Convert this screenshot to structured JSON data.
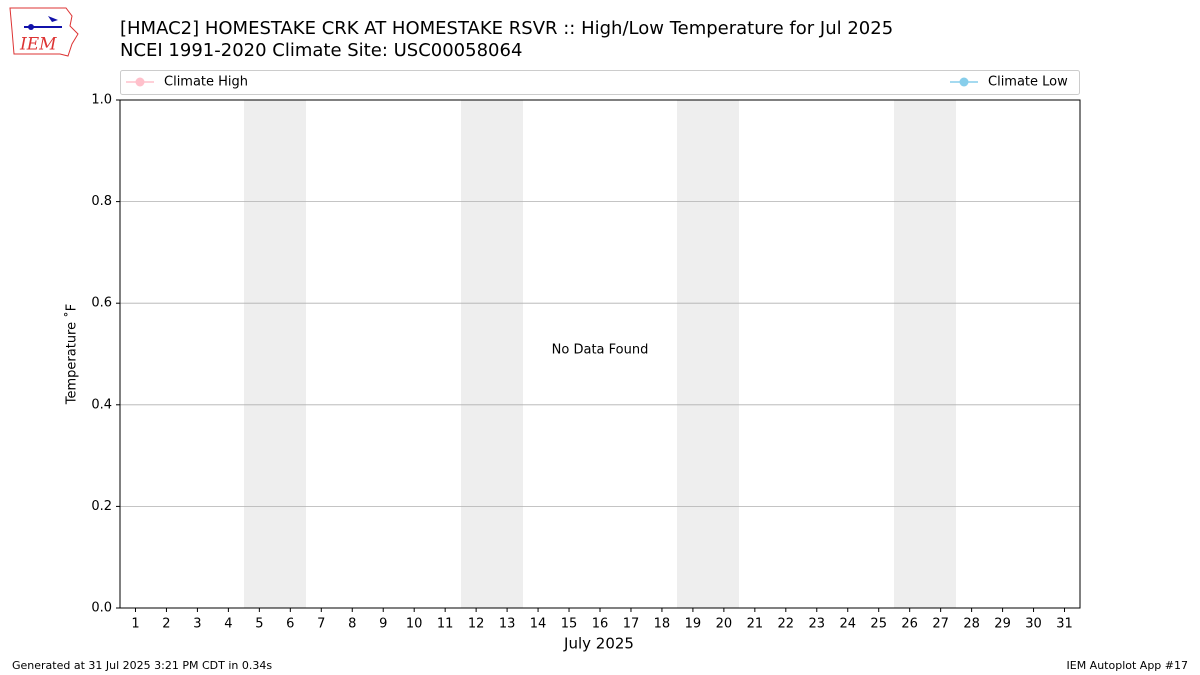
{
  "logo": "IEM",
  "chart_data": {
    "type": "line",
    "title": "[HMAC2] HOMESTAKE CRK AT HOMESTAKE RSVR :: High/Low Temperature for Jul 2025",
    "subtitle": "NCEI 1991-2020 Climate Site: USC00058064",
    "x_label": "July 2025",
    "y_label": "Temperature ˚F",
    "annotation": "No Data Found",
    "x": [],
    "series": [
      {
        "name": "Climate High",
        "color": "#ffc0cb",
        "values": []
      },
      {
        "name": "Climate Low",
        "color": "#87ceeb",
        "values": []
      }
    ],
    "xlim": [
      0.5,
      31.5
    ],
    "xticks": [
      1,
      2,
      3,
      4,
      5,
      6,
      7,
      8,
      9,
      10,
      11,
      12,
      13,
      14,
      15,
      16,
      17,
      18,
      19,
      20,
      21,
      22,
      23,
      24,
      25,
      26,
      27,
      28,
      29,
      30,
      31
    ],
    "ylim": [
      0,
      1
    ],
    "yticks": [
      {
        "value": 0,
        "label": "0.0"
      },
      {
        "value": 0.2,
        "label": "0.2"
      },
      {
        "value": 0.4,
        "label": "0.4"
      },
      {
        "value": 0.6,
        "label": "0.6"
      },
      {
        "value": 0.8,
        "label": "0.8"
      },
      {
        "value": 1,
        "label": "1.0"
      }
    ],
    "grid": "y",
    "footer_left": "Generated at 31 Jul 2025 3:21 PM CDT in 0.34s",
    "footer_right": "IEM Autoplot App #17"
  }
}
